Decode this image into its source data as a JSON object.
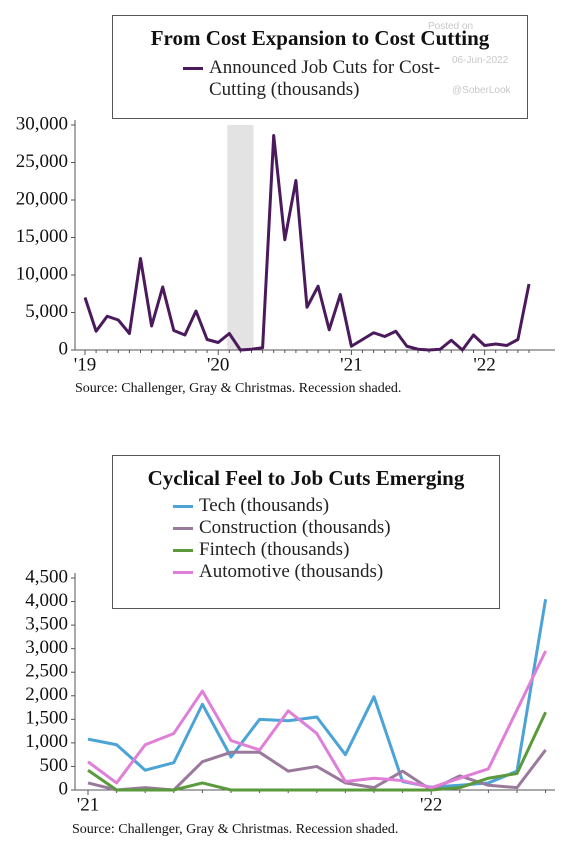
{
  "watermark": [
    "Posted on",
    "06-Jun-2022",
    "@SoberLook"
  ],
  "chart_data": [
    {
      "type": "line",
      "title": "From Cost Expansion to Cost Cutting",
      "source": "Source: Challenger, Gray & Christmas. Recession shaded.",
      "categories": [
        "'19",
        null,
        null,
        null,
        null,
        null,
        null,
        null,
        null,
        null,
        null,
        null,
        "'20",
        null,
        null,
        null,
        null,
        null,
        null,
        null,
        null,
        null,
        null,
        null,
        "'21",
        null,
        null,
        null,
        null,
        null,
        null,
        null,
        null,
        null,
        null,
        null,
        "'22",
        null,
        null,
        null,
        null
      ],
      "series": [
        {
          "name": "Announced Job Cuts for Cost-Cutting (thousands)",
          "color": "#4b1a5c",
          "values": [
            7000,
            2500,
            4500,
            4000,
            2200,
            12200,
            3200,
            8400,
            2600,
            2000,
            5200,
            1400,
            1000,
            2200,
            0,
            100,
            300,
            28600,
            14700,
            22600,
            5700,
            8500,
            2700,
            7400,
            500,
            1400,
            2300,
            1800,
            2500,
            500,
            100,
            0,
            100,
            1300,
            0,
            2000,
            600,
            800,
            600,
            1400,
            8800
          ]
        }
      ],
      "shaded": [
        13,
        15
      ],
      "ylim": [
        0,
        30000
      ],
      "yticks": [
        0,
        {
          "value": 5000,
          "label": "5,000"
        },
        {
          "value": 10000,
          "label": "10,000"
        },
        {
          "value": 15000,
          "label": "15,000"
        },
        {
          "value": 20000,
          "label": "20,000"
        },
        {
          "value": 25000,
          "label": "25,000"
        },
        {
          "value": 30000,
          "label": "30,000"
        }
      ]
    },
    {
      "type": "line",
      "title": "Cyclical Feel to Job Cuts Emerging",
      "source": "Source: Challenger, Gray & Christmas. Recession shaded.",
      "categories": [
        "'21",
        null,
        null,
        null,
        null,
        null,
        null,
        null,
        null,
        null,
        null,
        null,
        "'22",
        null,
        null,
        null,
        null
      ],
      "series": [
        {
          "name": "Tech (thousands)",
          "color": "#4ba3d6",
          "values": [
            1080,
            960,
            420,
            580,
            1820,
            700,
            1500,
            1470,
            1550,
            750,
            1980,
            180,
            60,
            100,
            150,
            400,
            4050
          ]
        },
        {
          "name": "Construction (thousands)",
          "color": "#9a7a9c",
          "values": [
            150,
            0,
            50,
            0,
            600,
            800,
            800,
            400,
            500,
            150,
            50,
            400,
            0,
            300,
            100,
            50,
            850
          ]
        },
        {
          "name": "Fintech (thousands)",
          "color": "#5a9a3c",
          "values": [
            420,
            0,
            0,
            0,
            150,
            0,
            0,
            0,
            0,
            0,
            0,
            0,
            0,
            50,
            250,
            350,
            1650
          ]
        },
        {
          "name": "Automotive (thousands)",
          "color": "#e07fd8",
          "values": [
            600,
            150,
            960,
            1200,
            2100,
            1050,
            850,
            1680,
            1200,
            180,
            250,
            200,
            50,
            250,
            450,
            1700,
            2950
          ]
        }
      ],
      "ylim": [
        0,
        4500
      ],
      "yticks": [
        0,
        500,
        {
          "value": 1000,
          "label": "1,000"
        },
        {
          "value": 1500,
          "label": "1,500"
        },
        {
          "value": 2000,
          "label": "2,000"
        },
        {
          "value": 2500,
          "label": "2,500"
        },
        {
          "value": 3000,
          "label": "3,000"
        },
        {
          "value": 3500,
          "label": "3,500"
        },
        {
          "value": 4000,
          "label": "4,000"
        },
        {
          "value": 4500,
          "label": "4,500"
        }
      ]
    }
  ]
}
